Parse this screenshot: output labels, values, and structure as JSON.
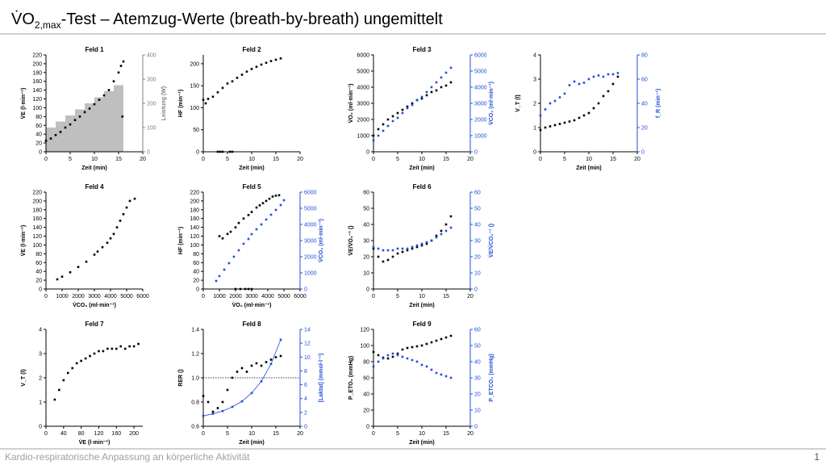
{
  "header": {
    "title_parts": [
      "V̇O",
      "2,max",
      "-Test  –  Atemzug-Werte (breath-by-breath) ungemittelt"
    ]
  },
  "footer": "Kardio-respiratorische Anpassung an körperliche Aktivität",
  "page_number": "1",
  "chart_data": [
    {
      "type": "scatter",
      "title": "Feld 1",
      "xlabel": "Zeit (min)",
      "ylabel": "V̇E (l·min⁻¹)",
      "y2label": "Leistung (W)",
      "y2_color": "#808080",
      "xlim": [
        0,
        20
      ],
      "xticks": [
        0,
        5,
        10,
        15,
        20
      ],
      "ylim": [
        0,
        220
      ],
      "yticks": [
        0,
        20,
        40,
        60,
        80,
        100,
        120,
        140,
        160,
        180,
        200,
        220
      ],
      "y2lim": [
        0,
        400
      ],
      "y2ticks": [
        0,
        100,
        200,
        300,
        400
      ],
      "bars": {
        "axis": "y2",
        "color": "#bfbfbf",
        "edges": [
          0,
          2,
          4,
          6,
          8,
          10,
          12,
          14,
          16
        ],
        "values": [
          100,
          125,
          150,
          175,
          200,
          225,
          250,
          275
        ]
      },
      "series": [
        {
          "color": "#000000",
          "x": [
            0,
            1,
            2,
            3,
            4,
            5,
            6,
            7,
            8,
            9,
            10,
            11,
            12,
            13,
            14,
            15,
            15.5,
            16,
            15.8
          ],
          "values": [
            25,
            30,
            38,
            45,
            55,
            62,
            72,
            80,
            90,
            98,
            108,
            118,
            128,
            140,
            160,
            180,
            195,
            205,
            80
          ]
        }
      ]
    },
    {
      "type": "scatter",
      "title": "Feld 2",
      "xlabel": "Zeit (min)",
      "ylabel": "HF (min⁻¹)",
      "xlim": [
        0,
        20
      ],
      "xticks": [
        0,
        5,
        10,
        15,
        20
      ],
      "ylim": [
        0,
        220
      ],
      "yticks": [
        0,
        50,
        100,
        150,
        200
      ],
      "series": [
        {
          "color": "#000000",
          "x": [
            0,
            0.5,
            1,
            2,
            3,
            4,
            5,
            6,
            7,
            8,
            9,
            10,
            11,
            12,
            13,
            14,
            15,
            16
          ],
          "values": [
            118,
            110,
            120,
            125,
            135,
            145,
            155,
            160,
            168,
            175,
            182,
            188,
            193,
            198,
            202,
            206,
            209,
            212
          ]
        },
        {
          "color": "#000000",
          "x": [
            3,
            3.5,
            4,
            5.5,
            6
          ],
          "values": [
            0,
            0,
            0,
            0,
            0
          ]
        }
      ]
    },
    {
      "type": "scatter",
      "title": "Feld 3",
      "xlabel": "Zeit (min)",
      "ylabel": "V̇O₂ (ml·min⁻¹)",
      "y2label": "V̇CO₂ (ml·min⁻¹)",
      "y2_color": "#1f4fd8",
      "xlim": [
        0,
        20
      ],
      "xticks": [
        0,
        5,
        10,
        15,
        20
      ],
      "ylim": [
        0,
        6000
      ],
      "yticks": [
        0,
        1000,
        2000,
        3000,
        4000,
        5000,
        6000
      ],
      "y2lim": [
        0,
        6000
      ],
      "y2ticks": [
        0,
        1000,
        2000,
        3000,
        4000,
        5000,
        6000
      ],
      "series": [
        {
          "color": "#000000",
          "x": [
            0,
            1,
            2,
            3,
            4,
            5,
            6,
            7,
            8,
            9,
            10,
            11,
            12,
            13,
            14,
            15,
            16
          ],
          "values": [
            1000,
            1400,
            1700,
            2000,
            2200,
            2400,
            2600,
            2800,
            3000,
            3200,
            3300,
            3500,
            3700,
            3800,
            4000,
            4100,
            4300
          ]
        },
        {
          "color": "#1f4fd8",
          "axis": "y2",
          "x": [
            0,
            1,
            2,
            3,
            4,
            5,
            6,
            7,
            8,
            9,
            10,
            11,
            12,
            13,
            14,
            15,
            16
          ],
          "values": [
            700,
            1000,
            1300,
            1600,
            1900,
            2100,
            2400,
            2700,
            2900,
            3200,
            3400,
            3700,
            4000,
            4300,
            4600,
            4900,
            5200
          ]
        }
      ]
    },
    {
      "type": "scatter",
      "xlabel": "Zeit (min)",
      "ylabel": "V_T (l)",
      "y2label": "f_R (min⁻¹)",
      "y2_color": "#1f4fd8",
      "xlim": [
        0,
        20
      ],
      "xticks": [
        0,
        5,
        10,
        15,
        20
      ],
      "ylim": [
        0,
        4
      ],
      "yticks": [
        0,
        1,
        2,
        3,
        4
      ],
      "y2lim": [
        0,
        80
      ],
      "y2ticks": [
        0,
        20,
        40,
        60,
        80
      ],
      "series": [
        {
          "color": "#000000",
          "x": [
            0,
            1,
            2,
            3,
            4,
            5,
            6,
            7,
            8,
            9,
            10,
            11,
            12,
            13,
            14,
            15,
            16
          ],
          "values": [
            0.9,
            1,
            1.05,
            1.1,
            1.15,
            1.2,
            1.25,
            1.3,
            1.4,
            1.5,
            1.6,
            1.8,
            2,
            2.3,
            2.5,
            2.8,
            3.1
          ]
        },
        {
          "color": "#1f4fd8",
          "axis": "y2",
          "x": [
            0,
            1,
            2,
            3,
            4,
            5,
            6,
            7,
            8,
            9,
            10,
            11,
            12,
            13,
            14,
            15,
            16
          ],
          "values": [
            30,
            35,
            40,
            42,
            45,
            48,
            55,
            58,
            56,
            57,
            60,
            62,
            63,
            62,
            64,
            64,
            65
          ]
        }
      ]
    },
    {
      "type": "scatter",
      "title": "Feld 4",
      "xlabel": "V̇CO₂ (ml·min⁻¹)",
      "ylabel": "V̇E (l·min⁻¹)",
      "xlim": [
        0,
        6000
      ],
      "xticks": [
        0,
        1000,
        2000,
        3000,
        4000,
        5000,
        6000
      ],
      "ylim": [
        0,
        220
      ],
      "yticks": [
        0,
        20,
        40,
        60,
        80,
        100,
        120,
        140,
        160,
        180,
        200,
        220
      ],
      "series": [
        {
          "color": "#000000",
          "x": [
            700,
            1000,
            1500,
            2000,
            2500,
            3000,
            3200,
            3500,
            3800,
            4000,
            4200,
            4400,
            4600,
            4800,
            5000,
            5200,
            5500
          ],
          "values": [
            22,
            28,
            38,
            50,
            62,
            78,
            85,
            95,
            105,
            115,
            125,
            140,
            155,
            170,
            185,
            200,
            205
          ]
        }
      ]
    },
    {
      "type": "scatter",
      "title": "Feld 5",
      "xlabel": "V̇O₂ (ml·min⁻¹)",
      "ylabel": "HF (min⁻¹)",
      "y2label": "V̇CO₂ (ml·min⁻¹)",
      "y2_color": "#1f4fd8",
      "xlim": [
        0,
        6000
      ],
      "xticks": [
        0,
        1000,
        2000,
        3000,
        4000,
        5000,
        6000
      ],
      "ylim": [
        0,
        220
      ],
      "yticks": [
        0,
        20,
        40,
        60,
        80,
        100,
        120,
        140,
        160,
        180,
        200,
        220
      ],
      "y2lim": [
        0,
        6000
      ],
      "y2ticks": [
        0,
        1000,
        2000,
        3000,
        4000,
        5000,
        6000
      ],
      "series": [
        {
          "color": "#000000",
          "x": [
            1000,
            1200,
            1500,
            1700,
            2000,
            2200,
            2500,
            2800,
            3000,
            3300,
            3500,
            3700,
            3900,
            4100,
            4300,
            4500,
            4700
          ],
          "values": [
            120,
            115,
            125,
            130,
            140,
            150,
            160,
            168,
            175,
            185,
            190,
            195,
            200,
            205,
            210,
            212,
            213
          ]
        },
        {
          "color": "#000000",
          "x": [
            2000,
            2300,
            2600,
            2800,
            3000
          ],
          "values": [
            0,
            0,
            0,
            0,
            0
          ]
        },
        {
          "color": "#1f4fd8",
          "axis": "y2",
          "x": [
            800,
            1000,
            1300,
            1600,
            1900,
            2200,
            2500,
            2800,
            3000,
            3300,
            3600,
            3900,
            4200,
            4500,
            4800,
            5000
          ],
          "values": [
            500,
            800,
            1200,
            1600,
            2000,
            2400,
            2800,
            3100,
            3400,
            3700,
            4000,
            4300,
            4600,
            4900,
            5200,
            5500
          ]
        }
      ]
    },
    {
      "type": "scatter",
      "title": "Feld 6",
      "xlabel": "Zeit (min)",
      "ylabel": "V̇E/V̇O₂⁻¹ ()",
      "y2label": "V̇E/V̇CO₂⁻¹ ()",
      "y2_color": "#1f4fd8",
      "xlim": [
        0,
        20
      ],
      "xticks": [
        0,
        5,
        10,
        15,
        20
      ],
      "ylim": [
        0,
        60
      ],
      "yticks": [
        0,
        10,
        20,
        30,
        40,
        50,
        60
      ],
      "y2lim": [
        0,
        60
      ],
      "y2ticks": [
        0,
        10,
        20,
        30,
        40,
        50,
        60
      ],
      "series": [
        {
          "color": "#000000",
          "x": [
            0,
            1,
            2,
            3,
            4,
            5,
            6,
            7,
            8,
            9,
            10,
            11,
            12,
            13,
            14,
            15,
            16
          ],
          "values": [
            25,
            20,
            17,
            18,
            20,
            22,
            23,
            24,
            25,
            26,
            27,
            28,
            30,
            33,
            36,
            40,
            45
          ]
        },
        {
          "color": "#1f4fd8",
          "axis": "y2",
          "x": [
            0,
            1,
            2,
            3,
            4,
            5,
            6,
            7,
            8,
            9,
            10,
            11,
            12,
            13,
            14,
            15,
            16
          ],
          "values": [
            26,
            25,
            24,
            24,
            24,
            25,
            25,
            25,
            26,
            27,
            28,
            29,
            30,
            32,
            34,
            36,
            38
          ]
        }
      ]
    },
    {
      "type": "scatter",
      "title": "Feld 7",
      "xlabel": "V̇E (l·min⁻¹)",
      "ylabel": "V_T (l)",
      "xlim": [
        0,
        220
      ],
      "xticks": [
        0,
        40,
        80,
        120,
        160,
        200
      ],
      "ylim": [
        0,
        4
      ],
      "yticks": [
        0,
        1,
        2,
        3,
        4
      ],
      "series": [
        {
          "color": "#000000",
          "x": [
            20,
            30,
            40,
            50,
            60,
            70,
            80,
            90,
            100,
            110,
            120,
            130,
            140,
            150,
            160,
            170,
            180,
            190,
            200,
            210
          ],
          "values": [
            1.1,
            1.5,
            1.9,
            2.2,
            2.4,
            2.6,
            2.7,
            2.8,
            2.9,
            3,
            3.1,
            3.1,
            3.2,
            3.2,
            3.2,
            3.3,
            3.2,
            3.3,
            3.3,
            3.4
          ]
        }
      ]
    },
    {
      "type": "scatter",
      "title": "Feld 8",
      "xlabel": "Zeit (min)",
      "ylabel": "RER ()",
      "y2label": "[Laktat] (mmol·l⁻¹)",
      "y2_color": "#1f4fd8",
      "xlim": [
        0,
        20
      ],
      "xticks": [
        0,
        5,
        10,
        15,
        20
      ],
      "ylim": [
        0.6,
        1.4
      ],
      "yticks": [
        0.6,
        0.8,
        {
          "value": 1,
          "label": "1.0"
        },
        1.2,
        1.4
      ],
      "y2lim": [
        0,
        14
      ],
      "y2ticks": [
        0,
        2,
        4,
        6,
        8,
        10,
        12,
        14
      ],
      "refline": 1,
      "series": [
        {
          "color": "#000000",
          "x": [
            0,
            1,
            2,
            3,
            4,
            5,
            6,
            7,
            8,
            9,
            10,
            11,
            12,
            13,
            14,
            15,
            16
          ],
          "values": [
            0.85,
            0.8,
            0.72,
            0.75,
            0.8,
            0.9,
            1,
            1.05,
            1.08,
            1.05,
            1.1,
            1.12,
            1.1,
            1.13,
            1.15,
            1.17,
            1.18
          ]
        },
        {
          "color": "#1f4fd8",
          "axis": "y2",
          "line": true,
          "x": [
            0,
            2,
            4,
            6,
            8,
            10,
            12,
            14,
            16
          ],
          "values": [
            1.5,
            1.8,
            2.2,
            2.8,
            3.6,
            4.8,
            6.5,
            9,
            12.5
          ]
        }
      ]
    },
    {
      "type": "scatter",
      "title": "Feld 9",
      "xlabel": "Zeit (min)",
      "ylabel": "P_ETO₂ (mmHg)",
      "y2label": "P_ETCO₂ (mmHg)",
      "y2_color": "#1f4fd8",
      "xlim": [
        0,
        20
      ],
      "xticks": [
        0,
        5,
        10,
        15,
        20
      ],
      "ylim": [
        0,
        120
      ],
      "yticks": [
        0,
        20,
        40,
        60,
        80,
        100,
        120
      ],
      "y2lim": [
        0,
        60
      ],
      "y2ticks": [
        0,
        10,
        20,
        30,
        40,
        50,
        60
      ],
      "series": [
        {
          "color": "#000000",
          "x": [
            0,
            1,
            2,
            3,
            4,
            5,
            6,
            7,
            8,
            9,
            10,
            11,
            12,
            13,
            14,
            15,
            16
          ],
          "values": [
            92,
            88,
            85,
            84,
            86,
            90,
            95,
            97,
            98,
            99,
            100,
            102,
            104,
            106,
            108,
            110,
            112
          ]
        },
        {
          "color": "#1f4fd8",
          "axis": "y2",
          "x": [
            0,
            1,
            2,
            3,
            4,
            5,
            6,
            7,
            8,
            9,
            10,
            11,
            12,
            13,
            14,
            15,
            16
          ],
          "values": [
            37,
            40,
            42,
            44,
            45,
            44,
            43,
            42,
            41,
            40,
            38,
            37,
            35,
            33,
            32,
            31,
            30
          ]
        }
      ]
    }
  ]
}
